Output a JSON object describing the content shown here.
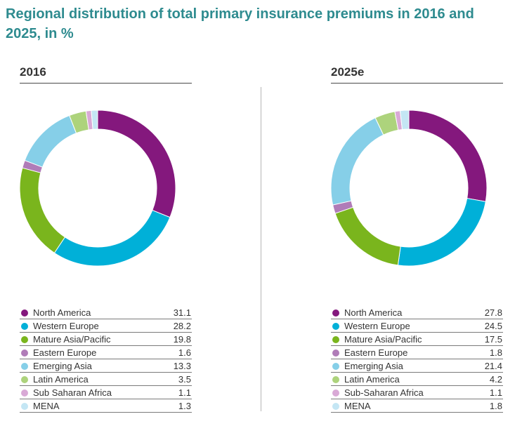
{
  "title": "Regional distribution of total primary insurance premiums in 2016 and 2025, in %",
  "chart_data": [
    {
      "type": "pie",
      "title": "2016",
      "categories": [
        "North America",
        "Western Europe",
        "Mature Asia/Pacific",
        "Eastern Europe",
        "Emerging Asia",
        "Latin America",
        "Sub Saharan Africa",
        "MENA"
      ],
      "values": [
        31.1,
        28.2,
        19.8,
        1.6,
        13.3,
        3.5,
        1.1,
        1.3
      ],
      "value_labels": [
        "31.1",
        "28.2",
        "19.8",
        "1.6",
        "13.3",
        "3.5",
        "1.1",
        "1.3"
      ],
      "colors": [
        "#84187d",
        "#00b0d8",
        "#7ab51d",
        "#b07cb8",
        "#86cfe8",
        "#add37c",
        "#d9a9d6",
        "#c4e6f4"
      ],
      "donut": true,
      "legend": "bottom"
    },
    {
      "type": "pie",
      "title": "2025e",
      "categories": [
        "North America",
        "Western Europe",
        "Mature Asia/Pacific",
        "Eastern Europe",
        "Emerging Asia",
        "Latin America",
        "Sub-Saharan Africa",
        "MENA"
      ],
      "values": [
        27.8,
        24.5,
        17.5,
        1.8,
        21.4,
        4.2,
        1.1,
        1.8
      ],
      "value_labels": [
        "27.8",
        "24.5",
        "17.5",
        "1.8",
        "21.4",
        "4.2",
        "1.1",
        "1.8"
      ],
      "colors": [
        "#84187d",
        "#00b0d8",
        "#7ab51d",
        "#b07cb8",
        "#86cfe8",
        "#add37c",
        "#d9a9d6",
        "#c4e6f4"
      ],
      "donut": true,
      "legend": "bottom"
    }
  ]
}
